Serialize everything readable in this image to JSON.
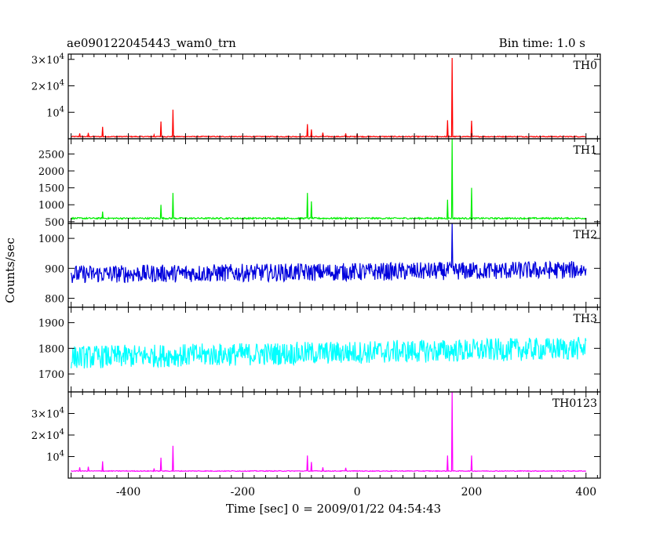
{
  "header": {
    "title": "ae090122045443_wam0_trn",
    "bin_time": "Bin time: 1.0 s"
  },
  "chart_data": {
    "type": "line",
    "xlabel": "Time [sec] 0 = 2009/01/22 04:54:43",
    "ylabel": "Counts/sec",
    "xlim": [
      -505,
      425
    ],
    "x_ticks": [
      -400,
      -200,
      0,
      200,
      400
    ],
    "bin_time_s": 1.0,
    "panels": [
      {
        "name": "TH0",
        "color": "#ff0000",
        "ylim": [
          0,
          32000
        ],
        "ticks": [
          {
            "v": 10000,
            "t": "10^4"
          },
          {
            "v": 20000,
            "t": "2×10^4"
          },
          {
            "v": 30000,
            "t": "3×10^4"
          }
        ],
        "baseline": 800,
        "noise": 350,
        "spikes": [
          {
            "x": -485,
            "y": 2000
          },
          {
            "x": -470,
            "y": 2200
          },
          {
            "x": -445,
            "y": 4500
          },
          {
            "x": -355,
            "y": 1500
          },
          {
            "x": -343,
            "y": 6500
          },
          {
            "x": -322,
            "y": 11000
          },
          {
            "x": -87,
            "y": 5500
          },
          {
            "x": -80,
            "y": 3500
          },
          {
            "x": -60,
            "y": 2300
          },
          {
            "x": -20,
            "y": 2000
          },
          {
            "x": 0,
            "y": 1800
          },
          {
            "x": 158,
            "y": 7000
          },
          {
            "x": 166,
            "y": 30500
          },
          {
            "x": 200,
            "y": 6800
          }
        ]
      },
      {
        "name": "TH1",
        "color": "#00ee00",
        "ylim": [
          450,
          2950
        ],
        "ticks": [
          {
            "v": 500,
            "t": "500"
          },
          {
            "v": 1000,
            "t": "1000"
          },
          {
            "v": 1500,
            "t": "1500"
          },
          {
            "v": 2000,
            "t": "2000"
          },
          {
            "v": 2500,
            "t": "2500"
          }
        ],
        "baseline": 600,
        "noise": 45,
        "spikes": [
          {
            "x": -445,
            "y": 800
          },
          {
            "x": -343,
            "y": 1000
          },
          {
            "x": -322,
            "y": 1350
          },
          {
            "x": -87,
            "y": 1350
          },
          {
            "x": -80,
            "y": 1100
          },
          {
            "x": 158,
            "y": 1150
          },
          {
            "x": 166,
            "y": 2950
          },
          {
            "x": 200,
            "y": 1500
          }
        ]
      },
      {
        "name": "TH2",
        "color": "#0000dd",
        "ylim": [
          770,
          1050
        ],
        "ticks": [
          {
            "v": 800,
            "t": "800"
          },
          {
            "v": 900,
            "t": "900"
          },
          {
            "v": 1000,
            "t": "1000"
          }
        ],
        "baseline": 880,
        "trend": 15,
        "noise": 60,
        "spikes": [
          {
            "x": 166,
            "y": 1050
          }
        ]
      },
      {
        "name": "TH3",
        "color": "#00ffff",
        "ylim": [
          1630,
          1960
        ],
        "ticks": [
          {
            "v": 1700,
            "t": "1700"
          },
          {
            "v": 1800,
            "t": "1800"
          },
          {
            "v": 1900,
            "t": "1900"
          }
        ],
        "baseline": 1765,
        "trend": 35,
        "noise": 90,
        "spikes": []
      },
      {
        "name": "TH0123",
        "color": "#ff00ff",
        "ylim": [
          0,
          40000
        ],
        "ticks": [
          {
            "v": 10000,
            "t": "10^4"
          },
          {
            "v": 20000,
            "t": "2×10^4"
          },
          {
            "v": 30000,
            "t": "3×10^4"
          }
        ],
        "baseline": 3300,
        "noise": 350,
        "spikes": [
          {
            "x": -485,
            "y": 5000
          },
          {
            "x": -470,
            "y": 5300
          },
          {
            "x": -445,
            "y": 7800
          },
          {
            "x": -355,
            "y": 4500
          },
          {
            "x": -343,
            "y": 9500
          },
          {
            "x": -322,
            "y": 15000
          },
          {
            "x": -87,
            "y": 10500
          },
          {
            "x": -80,
            "y": 7500
          },
          {
            "x": -60,
            "y": 5000
          },
          {
            "x": -20,
            "y": 4800
          },
          {
            "x": 158,
            "y": 10500
          },
          {
            "x": 166,
            "y": 40000
          },
          {
            "x": 200,
            "y": 10500
          }
        ]
      }
    ]
  }
}
